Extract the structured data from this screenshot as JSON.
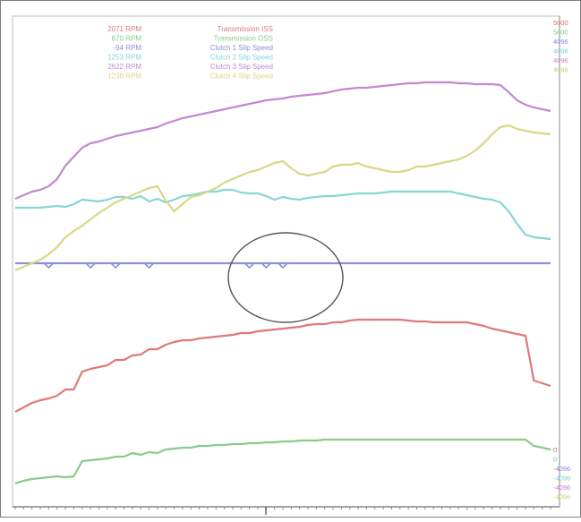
{
  "chart_data": {
    "type": "line",
    "title": "",
    "xlabel": "",
    "ylabel": "",
    "grid": false,
    "legend_position": "top-left",
    "x": [
      0,
      1,
      2,
      3,
      4,
      5,
      6,
      7,
      8,
      9,
      10,
      11,
      12,
      13,
      14,
      15,
      16,
      17,
      18,
      19,
      20,
      21,
      22,
      23,
      24,
      25,
      26,
      27,
      28,
      29,
      30,
      31,
      32,
      33,
      34,
      35,
      36,
      37,
      38,
      39,
      40,
      41,
      42,
      43,
      44,
      45,
      46,
      47,
      48,
      49,
      50,
      51,
      52,
      53,
      54,
      55,
      56,
      57,
      58,
      59,
      60,
      61,
      62,
      63,
      64
    ],
    "series": [
      {
        "name": "Transmission ISS",
        "readout": "2071 RPM",
        "color": "#e07878",
        "values": [
          460,
          455,
          450,
          447,
          445,
          442,
          435,
          435,
          415,
          412,
          410,
          408,
          402,
          402,
          397,
          396,
          390,
          390,
          385,
          382,
          380,
          380,
          378,
          377,
          376,
          375,
          374,
          372,
          372,
          370,
          369,
          368,
          367,
          366,
          365,
          363,
          362,
          362,
          360,
          360,
          358,
          357,
          357,
          357,
          357,
          357,
          357,
          358,
          359,
          359,
          360,
          360,
          360,
          360,
          360,
          362,
          364,
          367,
          369,
          371,
          373,
          375,
          425,
          428,
          431
        ]
      },
      {
        "name": "Transmission OSS",
        "readout": "670 RPM",
        "color": "#88cc88",
        "values": [
          540,
          537,
          535,
          534,
          533,
          532,
          533,
          532,
          515,
          514,
          513,
          512,
          510,
          510,
          506,
          508,
          505,
          506,
          502,
          501,
          500,
          500,
          498,
          498,
          497,
          497,
          496,
          496,
          495,
          495,
          494,
          494,
          493,
          493,
          492,
          492,
          492,
          491,
          491,
          491,
          491,
          491,
          491,
          491,
          491,
          491,
          491,
          491,
          491,
          491,
          491,
          491,
          491,
          491,
          491,
          491,
          491,
          491,
          491,
          491,
          491,
          491,
          498,
          500,
          502
        ]
      },
      {
        "name": "Clutch 1 Slip Speed",
        "readout": "-94 RPM",
        "color": "#8f8fd8",
        "values": [
          294,
          294,
          294,
          294,
          294,
          294,
          294,
          294,
          294,
          294,
          294,
          294,
          294,
          294,
          294,
          294,
          294,
          294,
          294,
          294,
          294,
          294,
          294,
          294,
          294,
          294,
          294,
          294,
          294,
          294,
          294,
          294,
          294,
          294,
          294,
          294,
          294,
          294,
          294,
          294,
          294,
          294,
          294,
          294,
          294,
          294,
          294,
          294,
          294,
          294,
          294,
          294,
          294,
          294,
          294,
          294,
          294,
          294,
          294,
          294,
          294,
          294,
          294,
          294,
          294
        ]
      },
      {
        "name": "Clutch 2 Slip Speed",
        "readout": "1253 RPM",
        "color": "#86d6d6",
        "values": [
          232,
          232,
          232,
          232,
          231,
          230,
          231,
          228,
          223,
          224,
          225,
          223,
          220,
          220,
          222,
          219,
          225,
          222,
          226,
          223,
          219,
          218,
          216,
          214,
          214,
          212,
          212,
          215,
          216,
          216,
          219,
          223,
          220,
          222,
          223,
          221,
          220,
          219,
          219,
          218,
          217,
          216,
          216,
          216,
          215,
          214,
          214,
          214,
          214,
          214,
          214,
          214,
          214,
          216,
          218,
          220,
          222,
          223,
          226,
          236,
          250,
          262,
          265,
          266,
          267
        ]
      },
      {
        "name": "Clutch 3 Slip Speed",
        "readout": "2622 RPM",
        "color": "#c488d2",
        "values": [
          222,
          218,
          214,
          212,
          208,
          200,
          185,
          175,
          165,
          160,
          158,
          155,
          152,
          150,
          148,
          146,
          144,
          142,
          138,
          135,
          132,
          130,
          128,
          126,
          124,
          122,
          120,
          118,
          116,
          114,
          112,
          111,
          110,
          108,
          107,
          106,
          105,
          104,
          102,
          100,
          99,
          98,
          98,
          97,
          96,
          95,
          94,
          93,
          93,
          92,
          92,
          92,
          92,
          93,
          93,
          94,
          94,
          94,
          95,
          103,
          112,
          117,
          120,
          122,
          124
        ]
      },
      {
        "name": "Clutch 4 Slip Speed",
        "readout": "1238 RPM",
        "color": "#d8d885",
        "values": [
          302,
          298,
          294,
          290,
          284,
          276,
          265,
          258,
          252,
          245,
          238,
          232,
          226,
          222,
          218,
          214,
          210,
          208,
          224,
          236,
          228,
          220,
          218,
          214,
          210,
          204,
          200,
          196,
          192,
          190,
          186,
          182,
          180,
          188,
          194,
          196,
          194,
          192,
          186,
          184,
          184,
          182,
          186,
          188,
          190,
          192,
          192,
          190,
          186,
          186,
          184,
          182,
          180,
          178,
          174,
          168,
          160,
          150,
          142,
          140,
          144,
          146,
          148,
          149,
          150
        ]
      }
    ],
    "right_axis": {
      "top_labels": [
        {
          "text": "5000",
          "color": "#d96a6a"
        },
        {
          "text": "5000",
          "color": "#7ac87a"
        },
        {
          "text": "4096",
          "color": "#8787d6"
        },
        {
          "text": "4096",
          "color": "#7ccfcf"
        },
        {
          "text": "4096",
          "color": "#c07fcc"
        },
        {
          "text": "4096",
          "color": "#cccc79"
        }
      ],
      "bottom_labels": [
        {
          "text": "0",
          "color": "#d96a6a"
        },
        {
          "text": "0",
          "color": "#7ac87a"
        },
        {
          "text": "-4096",
          "color": "#8787d6"
        },
        {
          "text": "-4096",
          "color": "#7ccfcf"
        },
        {
          "text": "-4096",
          "color": "#c07fcc"
        },
        {
          "text": "-4096",
          "color": "#cccc79"
        }
      ]
    },
    "x_tick_count": 64,
    "annotation": {
      "type": "ellipse",
      "description": "circle highlighting Clutch 1 slip speed dips",
      "color": "#555555"
    }
  }
}
